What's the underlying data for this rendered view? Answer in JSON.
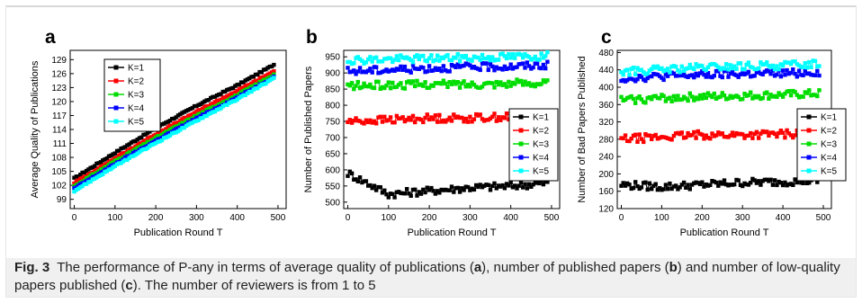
{
  "figure": {
    "caption_label": "Fig. 3",
    "caption_parts": [
      {
        "t": "The performance of P-any in terms of average quality of publications (",
        "b": false
      },
      {
        "t": "a",
        "b": true
      },
      {
        "t": "), number of published papers (",
        "b": false
      },
      {
        "t": "b",
        "b": true
      },
      {
        "t": ") and number of low-quality papers published (",
        "b": false
      },
      {
        "t": "c",
        "b": true
      },
      {
        "t": "). The number of reviewers is from 1 to 5",
        "b": false
      }
    ]
  },
  "series_colors": [
    "#000000",
    "#ff0000",
    "#00dd00",
    "#0000ff",
    "#00ffff"
  ],
  "chart_data": [
    {
      "panel": "a",
      "type": "line",
      "xlabel": "Publication Round T",
      "ylabel": "Average Quality of Publications",
      "xlim": [
        -10,
        520
      ],
      "ylim": [
        97,
        131
      ],
      "xticks": [
        0,
        100,
        200,
        300,
        400,
        500
      ],
      "yticks": [
        99,
        102,
        105,
        108,
        111,
        114,
        117,
        120,
        123,
        126,
        129
      ],
      "legend_position": "top-left",
      "x": [
        0,
        100,
        200,
        300,
        400,
        490
      ],
      "series": [
        {
          "name": "K=1",
          "values": [
            103.5,
            109.0,
            114.3,
            119.1,
            123.5,
            127.9
          ]
        },
        {
          "name": "K=2",
          "values": [
            102.5,
            107.8,
            113.0,
            117.8,
            122.3,
            126.5
          ]
        },
        {
          "name": "K=3",
          "values": [
            101.8,
            107.2,
            112.2,
            117.0,
            121.4,
            125.8
          ]
        },
        {
          "name": "K=4",
          "values": [
            101.3,
            106.6,
            111.6,
            116.4,
            120.9,
            125.3
          ]
        },
        {
          "name": "K=5",
          "values": [
            100.8,
            106.1,
            111.1,
            115.9,
            120.5,
            125.0
          ]
        }
      ]
    },
    {
      "panel": "b",
      "type": "line",
      "xlabel": "Publication Round T",
      "ylabel": "Number of Published Papers",
      "xlim": [
        -10,
        520
      ],
      "ylim": [
        480,
        970
      ],
      "xticks": [
        0,
        100,
        200,
        300,
        400,
        500
      ],
      "yticks": [
        500,
        550,
        600,
        650,
        700,
        750,
        800,
        850,
        900,
        950
      ],
      "legend_position": "right",
      "x": [
        0,
        100,
        200,
        300,
        400,
        490
      ],
      "series": [
        {
          "name": "K=1",
          "values": [
            590,
            525,
            535,
            545,
            550,
            560
          ]
        },
        {
          "name": "K=2",
          "values": [
            750,
            755,
            760,
            760,
            765,
            765
          ]
        },
        {
          "name": "K=3",
          "values": [
            860,
            862,
            865,
            865,
            868,
            870
          ]
        },
        {
          "name": "K=4",
          "values": [
            905,
            910,
            915,
            918,
            920,
            925
          ]
        },
        {
          "name": "K=5",
          "values": [
            940,
            942,
            945,
            947,
            950,
            952
          ]
        }
      ]
    },
    {
      "panel": "c",
      "type": "line",
      "xlabel": "Publication Round T",
      "ylabel": "Number of Bad Papers Published",
      "xlim": [
        -10,
        520
      ],
      "ylim": [
        120,
        485
      ],
      "xticks": [
        0,
        100,
        200,
        300,
        400,
        500
      ],
      "yticks": [
        120,
        160,
        200,
        240,
        280,
        320,
        360,
        400,
        440,
        480
      ],
      "legend_position": "right",
      "x": [
        0,
        100,
        200,
        300,
        400,
        490
      ],
      "series": [
        {
          "name": "K=1",
          "values": [
            175,
            170,
            175,
            180,
            182,
            185
          ]
        },
        {
          "name": "K=2",
          "values": [
            280,
            285,
            290,
            290,
            292,
            295
          ]
        },
        {
          "name": "K=3",
          "values": [
            370,
            375,
            378,
            380,
            382,
            385
          ]
        },
        {
          "name": "K=4",
          "values": [
            420,
            425,
            428,
            430,
            432,
            435
          ]
        },
        {
          "name": "K=5",
          "values": [
            435,
            440,
            445,
            448,
            450,
            455
          ]
        }
      ]
    }
  ]
}
